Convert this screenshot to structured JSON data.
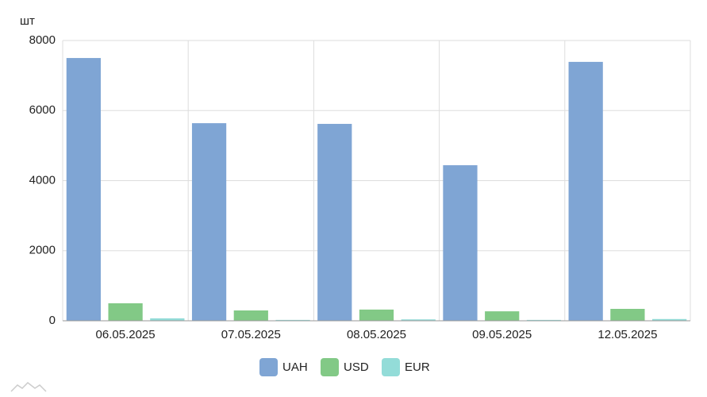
{
  "chart_data": {
    "type": "bar",
    "y_label": "шт",
    "categories": [
      "06.05.2025",
      "07.05.2025",
      "08.05.2025",
      "09.05.2025",
      "12.05.2025"
    ],
    "series": [
      {
        "name": "UAH",
        "color": "#7fa5d4",
        "values": [
          7500,
          5640,
          5620,
          4440,
          7390
        ]
      },
      {
        "name": "USD",
        "color": "#82c986",
        "values": [
          500,
          295,
          320,
          270,
          340
        ]
      },
      {
        "name": "EUR",
        "color": "#93dcd8",
        "values": [
          70,
          25,
          40,
          25,
          50
        ]
      }
    ],
    "ylim": [
      0,
      8000
    ],
    "yticks": [
      0,
      2000,
      4000,
      6000,
      8000
    ],
    "grid": true
  }
}
